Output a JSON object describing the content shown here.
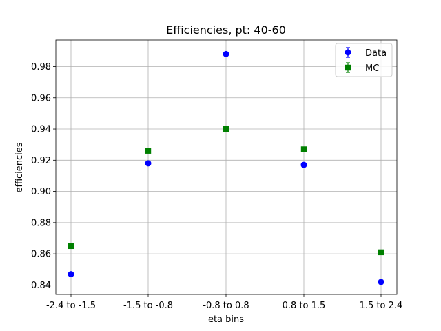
{
  "chart_data": {
    "type": "scatter",
    "title": "Efficiencies, pt: 40-60",
    "xlabel": "eta bins",
    "ylabel": "efficiencies",
    "categories": [
      "-2.4 to -1.5",
      "-1.5 to -0.8",
      "-0.8 to 0.8",
      "0.8 to 1.5",
      "1.5 to 2.4"
    ],
    "ylim": [
      0.834,
      0.997
    ],
    "yticks": [
      "0.84",
      "0.86",
      "0.88",
      "0.90",
      "0.92",
      "0.94",
      "0.96",
      "0.98"
    ],
    "grid": true,
    "legend_position": "top-right",
    "series": [
      {
        "name": "Data",
        "marker": "circle",
        "color": "#0000ff",
        "values": [
          0.847,
          0.918,
          0.988,
          0.917,
          0.842
        ]
      },
      {
        "name": "MC",
        "marker": "square",
        "color": "#008000",
        "values": [
          0.865,
          0.926,
          0.94,
          0.927,
          0.861
        ]
      }
    ]
  }
}
